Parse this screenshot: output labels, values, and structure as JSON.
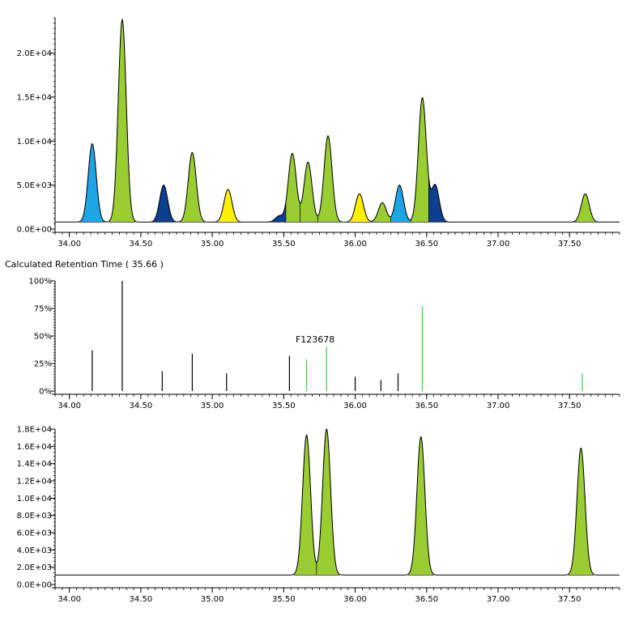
{
  "colors": {
    "green": "#9ACD32",
    "dark_green": "#2E8B2E",
    "light_green_line": "#4CC44C",
    "blue": "#1EA5E6",
    "navy": "#0D3F8F",
    "yellow": "#FFF000",
    "axis": "#000000",
    "trace": "#000000"
  },
  "chart_data": [
    {
      "type": "area",
      "title": "",
      "xlabel": "",
      "ylabel": "",
      "xlim": [
        33.9,
        37.85
      ],
      "ylim": [
        0,
        24000
      ],
      "x_ticks": [
        34.0,
        34.5,
        35.0,
        35.5,
        36.0,
        36.5,
        37.0,
        37.5
      ],
      "x_tick_labels": [
        "34.00",
        "34.50",
        "35.00",
        "35.50",
        "36.00",
        "36.50",
        "37.00",
        "37.50"
      ],
      "y_ticks": [
        0,
        5000,
        10000,
        15000,
        20000
      ],
      "y_tick_labels": [
        "0.0E+00",
        "5.0E+03",
        "1.0E+04",
        "1.5E+04",
        "2.0E+04"
      ],
      "baseline": 800,
      "peaks": [
        {
          "rt": 34.16,
          "height": 9700,
          "color": "blue"
        },
        {
          "rt": 34.37,
          "height": 23800,
          "color": "green"
        },
        {
          "rt": 34.66,
          "height": 5000,
          "color": "navy"
        },
        {
          "rt": 34.86,
          "height": 8700,
          "color": "green"
        },
        {
          "rt": 35.11,
          "height": 4500,
          "color": "yellow"
        },
        {
          "rt": 35.47,
          "height": 1500,
          "color": "navy"
        },
        {
          "rt": 35.56,
          "height": 8600,
          "color": "green"
        },
        {
          "rt": 35.67,
          "height": 7600,
          "color": "green"
        },
        {
          "rt": 35.81,
          "height": 10600,
          "color": "green"
        },
        {
          "rt": 36.03,
          "height": 4000,
          "color": "yellow"
        },
        {
          "rt": 36.19,
          "height": 3000,
          "color": "green"
        },
        {
          "rt": 36.31,
          "height": 5000,
          "color": "blue"
        },
        {
          "rt": 36.47,
          "height": 14900,
          "color": "green"
        },
        {
          "rt": 36.56,
          "height": 5000,
          "color": "navy"
        },
        {
          "rt": 37.61,
          "height": 4000,
          "color": "green"
        }
      ],
      "grid": false,
      "legend": "none"
    },
    {
      "type": "bar",
      "title": "Calculated Retention Time ( 35.66 )",
      "xlabel": "",
      "ylabel": "",
      "xlim": [
        33.9,
        37.85
      ],
      "ylim": [
        0,
        100
      ],
      "x_ticks": [
        34.0,
        34.5,
        35.0,
        35.5,
        36.0,
        36.5,
        37.0,
        37.5
      ],
      "x_tick_labels": [
        "34.00",
        "34.50",
        "35.00",
        "35.50",
        "36.00",
        "36.50",
        "37.00",
        "37.50"
      ],
      "y_ticks": [
        0,
        25,
        50,
        75,
        100
      ],
      "y_tick_labels": [
        "0%",
        "25%",
        "50%",
        "75%",
        "100%"
      ],
      "sticks": [
        {
          "rt": 34.16,
          "value": 37,
          "color": "black"
        },
        {
          "rt": 34.37,
          "value": 100,
          "color": "black"
        },
        {
          "rt": 34.65,
          "value": 18,
          "color": "black"
        },
        {
          "rt": 34.86,
          "value": 34,
          "color": "black"
        },
        {
          "rt": 35.1,
          "value": 16,
          "color": "black"
        },
        {
          "rt": 35.54,
          "value": 32,
          "color": "black"
        },
        {
          "rt": 35.66,
          "value": 29,
          "color": "green"
        },
        {
          "rt": 35.8,
          "value": 40,
          "color": "green"
        },
        {
          "rt": 36.0,
          "value": 13,
          "color": "black"
        },
        {
          "rt": 36.18,
          "value": 10,
          "color": "black"
        },
        {
          "rt": 36.3,
          "value": 16,
          "color": "black"
        },
        {
          "rt": 36.47,
          "value": 77,
          "color": "green"
        },
        {
          "rt": 37.59,
          "value": 16,
          "color": "green"
        }
      ],
      "annotations": [
        {
          "text": "F123678",
          "rt": 35.72,
          "value": 44
        }
      ],
      "grid": false,
      "legend": "none"
    },
    {
      "type": "area",
      "title": "",
      "xlabel": "",
      "ylabel": "",
      "xlim": [
        33.9,
        37.85
      ],
      "ylim": [
        0,
        18000
      ],
      "x_ticks": [
        34.0,
        34.5,
        35.0,
        35.5,
        36.0,
        36.5,
        37.0,
        37.5
      ],
      "x_tick_labels": [
        "34.00",
        "34.50",
        "35.00",
        "35.50",
        "36.00",
        "36.50",
        "37.00",
        "37.50"
      ],
      "y_ticks": [
        0,
        2000,
        4000,
        6000,
        8000,
        10000,
        12000,
        14000,
        16000,
        18000
      ],
      "y_tick_labels": [
        "0.0E+00",
        "2.0E+03",
        "4.0E+03",
        "6.0E+03",
        "8.0E+03",
        "1.0E+04",
        "1.2E+04",
        "1.4E+04",
        "1.6E+04",
        "1.8E+04"
      ],
      "baseline": 1100,
      "peaks": [
        {
          "rt": 35.66,
          "height": 17300,
          "color": "green"
        },
        {
          "rt": 35.8,
          "height": 18000,
          "color": "green"
        },
        {
          "rt": 36.46,
          "height": 17100,
          "color": "green"
        },
        {
          "rt": 37.58,
          "height": 15800,
          "color": "green"
        }
      ],
      "grid": false,
      "legend": "none"
    }
  ]
}
